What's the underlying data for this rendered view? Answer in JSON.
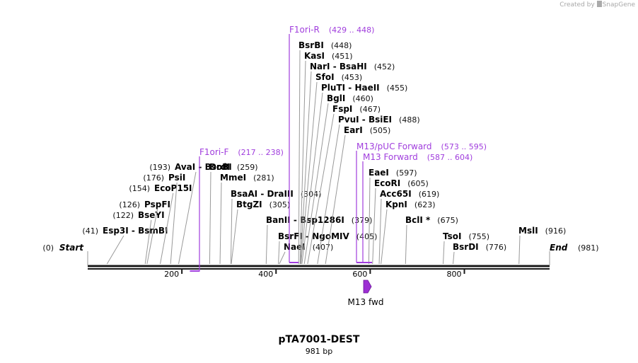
{
  "credit": {
    "prefix": "Created by",
    "brand": "SnapGene"
  },
  "sequence": {
    "name": "pTA7001-DEST",
    "length_label": "981 bp",
    "length": 981
  },
  "ruler": {
    "ticks": [
      "200",
      "400",
      "600",
      "800"
    ]
  },
  "ends": {
    "start": {
      "label": "Start",
      "pos": "(0)"
    },
    "end": {
      "label": "End",
      "pos": "(981)"
    }
  },
  "enzymes": [
    {
      "names": [
        "Esp3I",
        "BsmBI"
      ],
      "pos": "(41)",
      "side": "left"
    },
    {
      "names": [
        "BseYI"
      ],
      "pos": "(122)",
      "side": "left"
    },
    {
      "names": [
        "PspFI"
      ],
      "pos": "(126)",
      "side": "left"
    },
    {
      "names": [
        "EcoP15I"
      ],
      "pos": "(154)",
      "side": "left"
    },
    {
      "names": [
        "PsiI"
      ],
      "pos": "(176)",
      "side": "left"
    },
    {
      "names": [
        "AvaI",
        "BsoBI"
      ],
      "pos": "(193)",
      "side": "left"
    },
    {
      "names": [
        "DrdI"
      ],
      "pos": "(259)",
      "side": "right"
    },
    {
      "names": [
        "MmeI"
      ],
      "pos": "(281)",
      "side": "right"
    },
    {
      "names": [
        "BtgZI"
      ],
      "pos": "(305)",
      "side": "right"
    },
    {
      "names": [
        "BsaAI",
        "DraIII"
      ],
      "pos": "(304)",
      "side": "right"
    },
    {
      "names": [
        "BanII",
        "Bsp1286I"
      ],
      "pos": "(379)",
      "side": "right"
    },
    {
      "names": [
        "BsrFI",
        "NgoMIV"
      ],
      "pos": "(405)",
      "side": "right"
    },
    {
      "names": [
        "NaeI"
      ],
      "pos": "(407)",
      "side": "right"
    },
    {
      "names": [
        "BsrBI"
      ],
      "pos": "(448)",
      "side": "right"
    },
    {
      "names": [
        "KasI"
      ],
      "pos": "(451)",
      "side": "right"
    },
    {
      "names": [
        "NarI",
        "BsaHI"
      ],
      "pos": "(452)",
      "side": "right"
    },
    {
      "names": [
        "SfoI"
      ],
      "pos": "(453)",
      "side": "right"
    },
    {
      "names": [
        "PluTI",
        "HaeII"
      ],
      "pos": "(455)",
      "side": "right"
    },
    {
      "names": [
        "BglI"
      ],
      "pos": "(460)",
      "side": "right"
    },
    {
      "names": [
        "FspI"
      ],
      "pos": "(467)",
      "side": "right"
    },
    {
      "names": [
        "PvuI",
        "BsiEI"
      ],
      "pos": "(488)",
      "side": "right"
    },
    {
      "names": [
        "EarI"
      ],
      "pos": "(505)",
      "side": "right"
    },
    {
      "names": [
        "EaeI"
      ],
      "pos": "(597)",
      "side": "right"
    },
    {
      "names": [
        "EcoRI"
      ],
      "pos": "(605)",
      "side": "right"
    },
    {
      "names": [
        "Acc65I"
      ],
      "pos": "(619)",
      "side": "right"
    },
    {
      "names": [
        "KpnI"
      ],
      "pos": "(623)",
      "side": "right"
    },
    {
      "names": [
        "BclI *"
      ],
      "pos": "(675)",
      "side": "right"
    },
    {
      "names": [
        "TsoI"
      ],
      "pos": "(755)",
      "side": "right"
    },
    {
      "names": [
        "BsrDI"
      ],
      "pos": "(776)",
      "side": "right"
    },
    {
      "names": [
        "MslI"
      ],
      "pos": "(916)",
      "side": "right"
    }
  ],
  "primers": [
    {
      "name": "F1ori-R",
      "range": "(429 .. 448)"
    },
    {
      "name": "F1ori-F",
      "range": "(217 .. 238)"
    },
    {
      "name": "M13/pUC Forward",
      "range": "(573 .. 595)"
    },
    {
      "name": "M13 Forward",
      "range": "(587 .. 604)"
    }
  ],
  "features": [
    {
      "name": "M13 fwd"
    }
  ],
  "colors": {
    "primer": "#a03ddd",
    "feature": "#9d2fd3",
    "leader": "#999999",
    "backbone": "#1a1a1a",
    "pos_text": "#111111"
  }
}
